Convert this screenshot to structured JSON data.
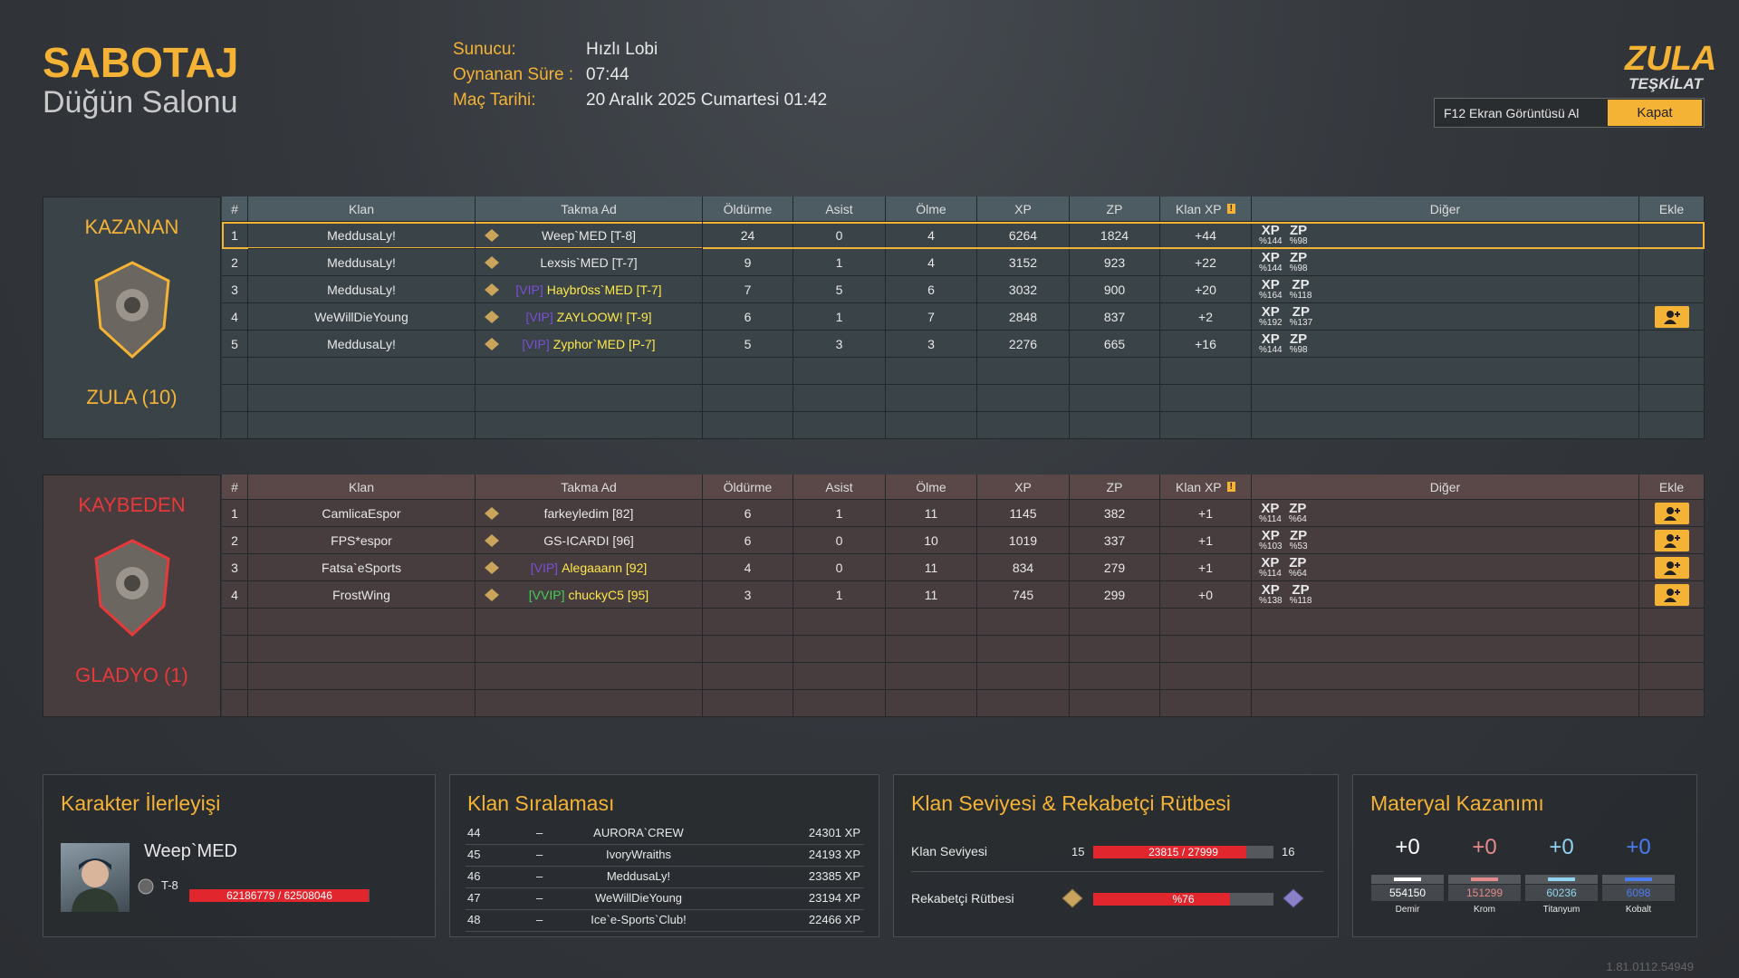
{
  "header": {
    "mode": "SABOTAJ",
    "map": "Düğün Salonu",
    "info": [
      {
        "label": "Sunucu:",
        "value": "Hızlı Lobi"
      },
      {
        "label": "Oynanan Süre :",
        "value": "07:44"
      },
      {
        "label": "Maç Tarihi:",
        "value": "20 Aralık 2025 Cumartesi 01:42"
      }
    ],
    "logo_top": "ZULA",
    "logo_bottom": "TEŞKİLAT",
    "screenshot_button": "F12 Ekran Görüntüsü Al",
    "close_button": "Kapat"
  },
  "columns": [
    "#",
    "Klan",
    "Takma Ad",
    "Öldürme",
    "Asist",
    "Ölme",
    "XP",
    "ZP",
    "Klan XP",
    "Diğer",
    "Ekle"
  ],
  "teams": [
    {
      "result": "KAZANAN",
      "name": "ZULA (10)",
      "rows": [
        {
          "rank": 1,
          "clan": "MeddusaLy!",
          "vip": null,
          "nick": "Weep`MED [T-8]",
          "kills": 24,
          "assists": 0,
          "deaths": 4,
          "xp": 6264,
          "zp": 1824,
          "clan_xp": "+44",
          "other": [
            {
              "label": "XP",
              "value": "%144"
            },
            {
              "label": "ZP",
              "value": "%98"
            }
          ],
          "add_button": false
        },
        {
          "rank": 2,
          "clan": "MeddusaLy!",
          "vip": null,
          "nick": "Lexsis`MED [T-7]",
          "kills": 9,
          "assists": 1,
          "deaths": 4,
          "xp": 3152,
          "zp": 923,
          "clan_xp": "+22",
          "other": [
            {
              "label": "XP",
              "value": "%144"
            },
            {
              "label": "ZP",
              "value": "%98"
            }
          ],
          "add_button": false
        },
        {
          "rank": 3,
          "clan": "MeddusaLy!",
          "vip": "[VIP]",
          "nick": "Haybr0ss`MED [T-7]",
          "kills": 7,
          "assists": 5,
          "deaths": 6,
          "xp": 3032,
          "zp": 900,
          "clan_xp": "+20",
          "other": [
            {
              "label": "XP",
              "value": "%164"
            },
            {
              "label": "ZP",
              "value": "%118"
            }
          ],
          "add_button": false
        },
        {
          "rank": 4,
          "clan": "WeWillDieYoung",
          "vip": "[VIP]",
          "nick": "ZAYLOOW! [T-9]",
          "kills": 6,
          "assists": 1,
          "deaths": 7,
          "xp": 2848,
          "zp": 837,
          "clan_xp": "+2",
          "other": [
            {
              "label": "XP",
              "value": "%192"
            },
            {
              "label": "ZP",
              "value": "%137"
            }
          ],
          "add_button": true
        },
        {
          "rank": 5,
          "clan": "MeddusaLy!",
          "vip": "[VIP]",
          "nick": "Zyphor`MED [P-7]",
          "kills": 5,
          "assists": 3,
          "deaths": 3,
          "xp": 2276,
          "zp": 665,
          "clan_xp": "+16",
          "other": [
            {
              "label": "XP",
              "value": "%144"
            },
            {
              "label": "ZP",
              "value": "%98"
            }
          ],
          "add_button": false
        }
      ]
    },
    {
      "result": "KAYBEDEN",
      "name": "GLADYO (1)",
      "rows": [
        {
          "rank": 1,
          "clan": "CamlicaEspor",
          "vip": null,
          "nick": "farkeyledim [82]",
          "kills": 6,
          "assists": 1,
          "deaths": 11,
          "xp": 1145,
          "zp": 382,
          "clan_xp": "+1",
          "other": [
            {
              "label": "XP",
              "value": "%114"
            },
            {
              "label": "ZP",
              "value": "%64"
            }
          ],
          "add_button": true
        },
        {
          "rank": 2,
          "clan": "FPS*espor",
          "vip": null,
          "nick": "GS-ICARDI [96]",
          "kills": 6,
          "assists": 0,
          "deaths": 10,
          "xp": 1019,
          "zp": 337,
          "clan_xp": "+1",
          "other": [
            {
              "label": "XP",
              "value": "%103"
            },
            {
              "label": "ZP",
              "value": "%53"
            }
          ],
          "add_button": true
        },
        {
          "rank": 3,
          "clan": "Fatsa`eSports",
          "vip": "[VIP]",
          "nick": "Alegaaann [92]",
          "kills": 4,
          "assists": 0,
          "deaths": 11,
          "xp": 834,
          "zp": 279,
          "clan_xp": "+1",
          "other": [
            {
              "label": "XP",
              "value": "%114"
            },
            {
              "label": "ZP",
              "value": "%64"
            }
          ],
          "add_button": true
        },
        {
          "rank": 4,
          "clan": "FrostWing",
          "vip": "[VVIP]",
          "nick": "chuckyC5 [95]",
          "kills": 3,
          "assists": 1,
          "deaths": 11,
          "xp": 745,
          "zp": 299,
          "clan_xp": "+0",
          "other": [
            {
              "label": "XP",
              "value": "%138"
            },
            {
              "label": "ZP",
              "value": "%118"
            }
          ],
          "add_button": true
        }
      ]
    }
  ],
  "character": {
    "title": "Karakter İlerleyişi",
    "name": "Weep`MED",
    "rank": "T-8",
    "current": 62186779,
    "max": 62508046
  },
  "clan_ranking": {
    "title": "Klan Sıralaması",
    "rows": [
      {
        "rank": 44,
        "change": "–",
        "clan": "AURORA`CREW",
        "xp": "24301 XP"
      },
      {
        "rank": 45,
        "change": "–",
        "clan": "IvoryWraiths",
        "xp": "24193 XP"
      },
      {
        "rank": 46,
        "change": "–",
        "clan": "MeddusaLy!",
        "xp": "23385 XP"
      },
      {
        "rank": 47,
        "change": "–",
        "clan": "WeWillDieYoung",
        "xp": "23194 XP"
      },
      {
        "rank": 48,
        "change": "–",
        "clan": "Ice`e-Sports`Club!",
        "xp": "22466 XP"
      }
    ]
  },
  "clan_level": {
    "title": "Klan Seviyesi & Rekabetçi Rütbesi",
    "level_label": "Klan Seviyesi",
    "level": 15,
    "next_level": 16,
    "current": 23815,
    "max": 27999,
    "rank_label": "Rekabetçi Rütbesi",
    "rank_progress": {
      "value": 76,
      "label": "%76"
    }
  },
  "materials": {
    "title": "Materyal Kazanımı",
    "items": [
      {
        "gain": "+0",
        "amount": 554150,
        "name": "Demir",
        "color": "#ffffff"
      },
      {
        "gain": "+0",
        "amount": 151299,
        "name": "Krom",
        "color": "#e58a8a"
      },
      {
        "gain": "+0",
        "amount": 60236,
        "name": "Titanyum",
        "color": "#8fd3f0"
      },
      {
        "gain": "+0",
        "amount": 6098,
        "name": "Kobalt",
        "color": "#4a7cf0"
      }
    ]
  },
  "version": "1.81.0112.54949"
}
